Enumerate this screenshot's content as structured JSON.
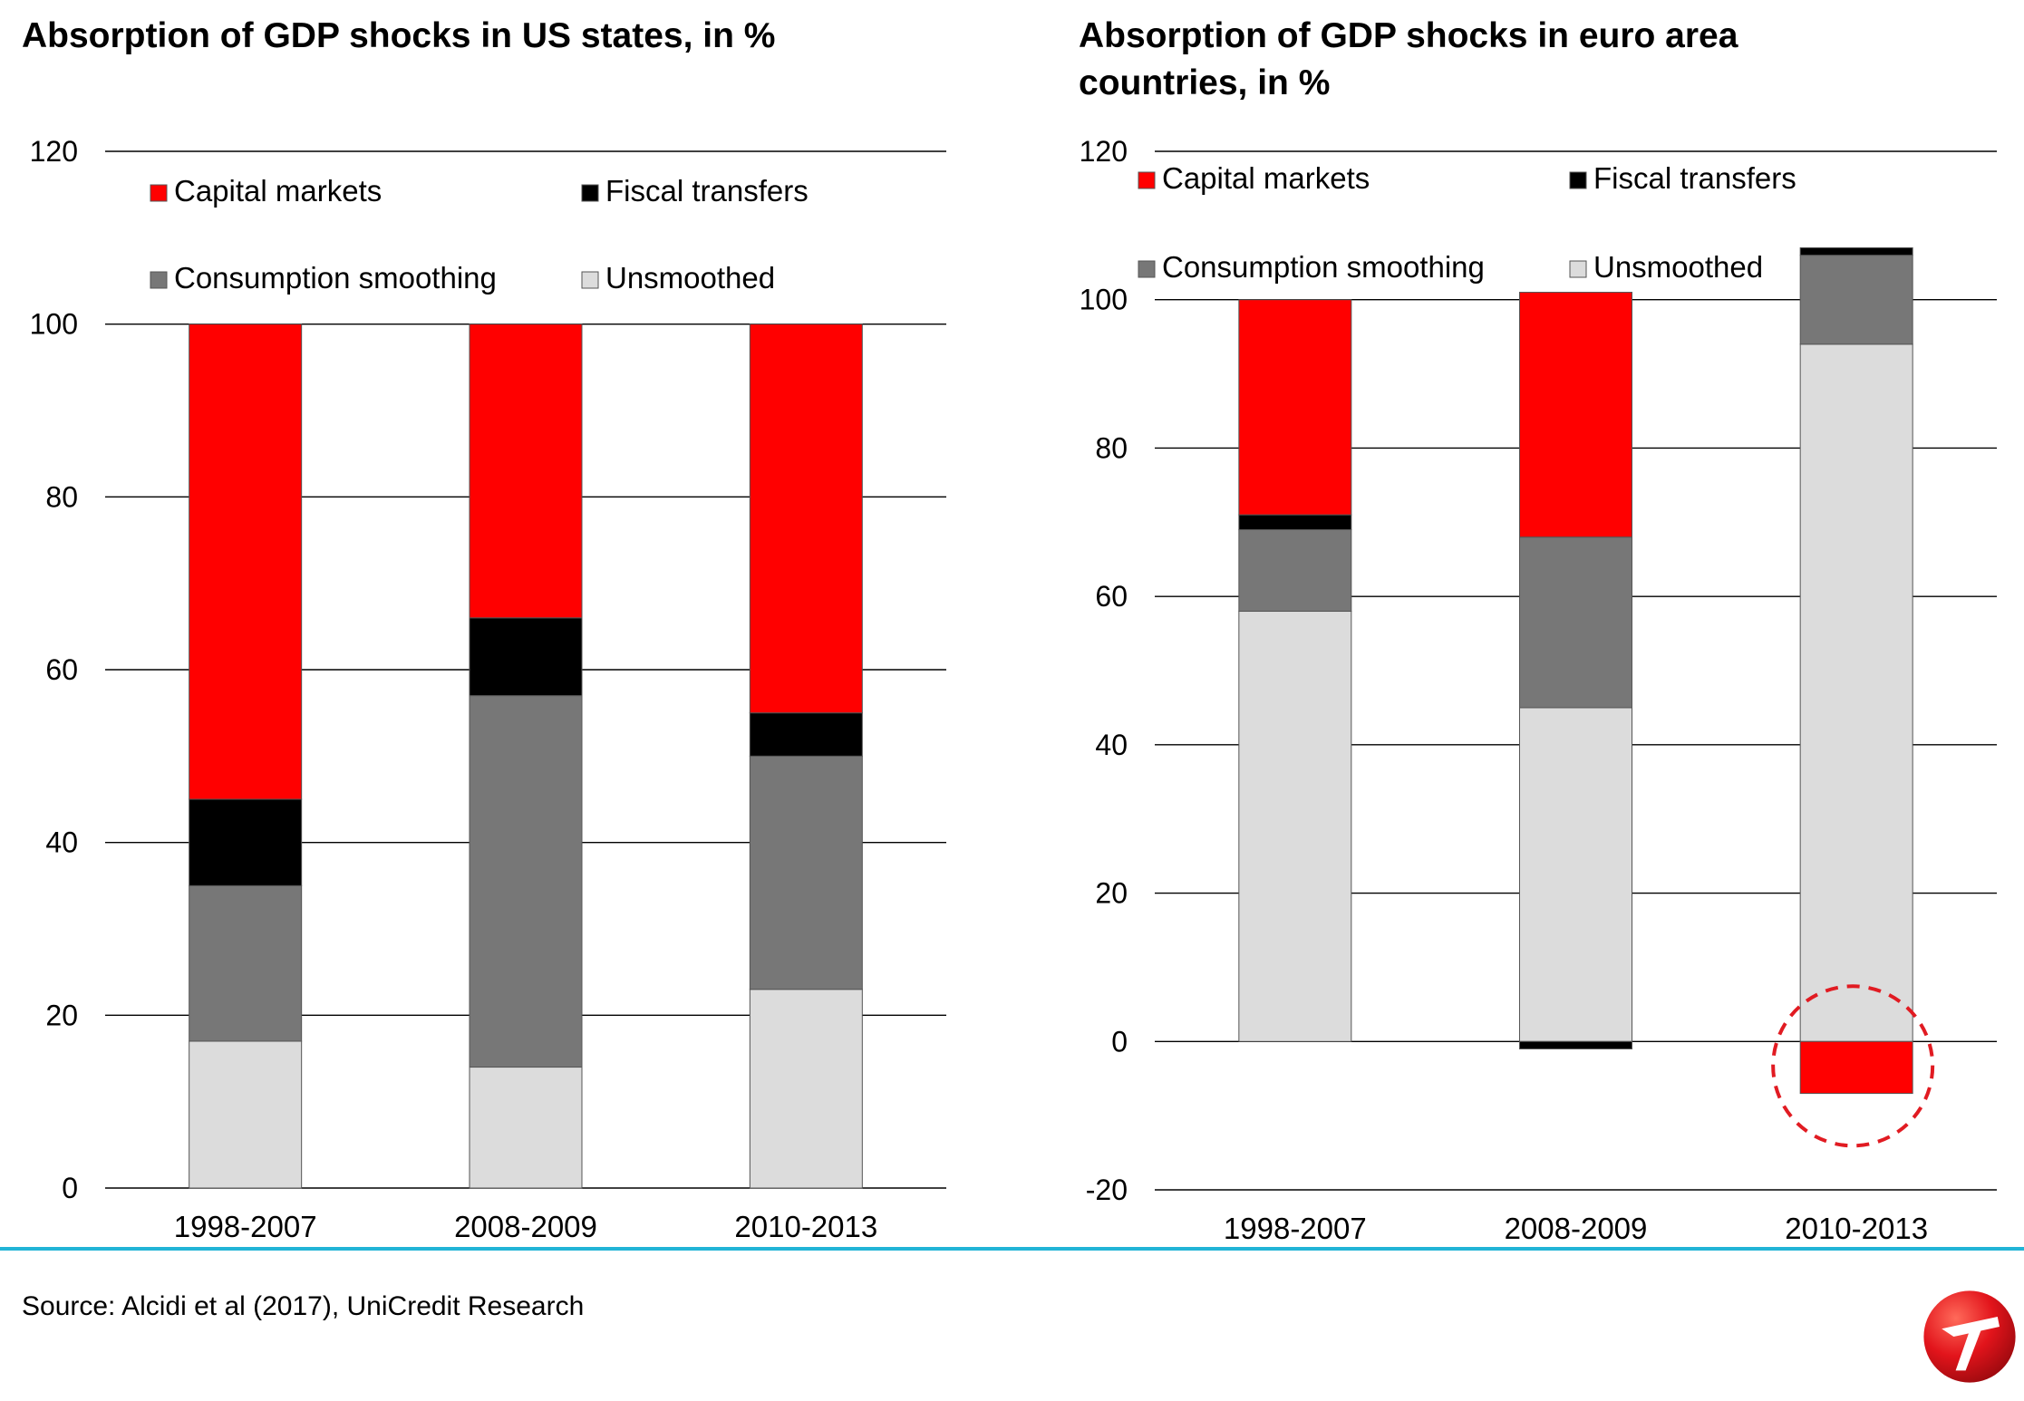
{
  "chart_data": [
    {
      "type": "bar",
      "stacked": true,
      "title": "Absorption of GDP shocks in US states, in %",
      "categories": [
        "1998-2007",
        "2008-2009",
        "2010-2013"
      ],
      "ylim": [
        0,
        120
      ],
      "yticks": [
        0,
        20,
        40,
        60,
        80,
        100,
        120
      ],
      "grid": true,
      "legend": [
        "Capital markets",
        "Fiscal transfers",
        "Consumption smoothing",
        "Unsmoothed"
      ],
      "series": [
        {
          "name": "Unsmoothed",
          "color": "#dcdcdc",
          "values": [
            17,
            14,
            23
          ]
        },
        {
          "name": "Consumption smoothing",
          "color": "#777777",
          "values": [
            18,
            43,
            27
          ]
        },
        {
          "name": "Fiscal transfers",
          "color": "#000000",
          "values": [
            10,
            9,
            5
          ]
        },
        {
          "name": "Capital markets",
          "color": "#ff0000",
          "values": [
            55,
            34,
            45
          ]
        }
      ]
    },
    {
      "type": "bar",
      "stacked": true,
      "title": "Absorption of GDP shocks in euro area countries, in %",
      "categories": [
        "1998-2007",
        "2008-2009",
        "2010-2013"
      ],
      "ylim": [
        -20,
        120
      ],
      "yticks": [
        -20,
        0,
        20,
        40,
        60,
        80,
        100,
        120
      ],
      "grid": true,
      "legend": [
        "Capital markets",
        "Fiscal transfers",
        "Consumption smoothing",
        "Unsmoothed"
      ],
      "annotation": "dashed red circle around 2010-2013 negative capital markets bar",
      "series": [
        {
          "name": "Unsmoothed",
          "color": "#dcdcdc",
          "values": [
            58,
            45,
            94
          ]
        },
        {
          "name": "Consumption smoothing",
          "color": "#777777",
          "values": [
            11,
            23,
            12
          ]
        },
        {
          "name": "Fiscal transfers",
          "color": "#000000",
          "values": [
            2,
            -1,
            1
          ]
        },
        {
          "name": "Capital markets",
          "color": "#ff0000",
          "values": [
            29,
            33,
            -7
          ]
        }
      ]
    }
  ],
  "footer": {
    "source": "Source: Alcidi et al (2017), UniCredit Research",
    "divider_color": "#22b4d6",
    "logo_icon": "unicredit-logo-icon"
  }
}
